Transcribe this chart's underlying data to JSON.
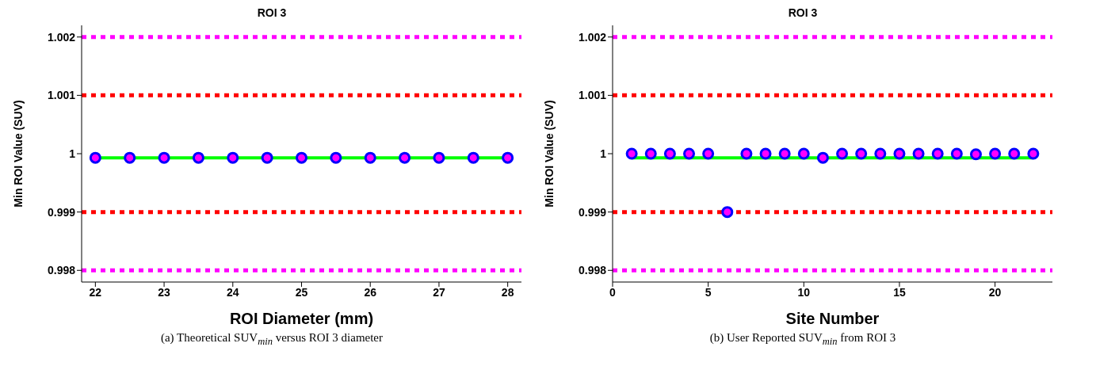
{
  "chart_data": [
    {
      "type": "scatter",
      "title": "ROI 3",
      "xlabel": "ROI Diameter (mm)",
      "ylabel": "Min ROI Value (SUV)",
      "xlim": [
        21.8,
        28.2
      ],
      "xticks": [
        22,
        23,
        24,
        25,
        26,
        27,
        28
      ],
      "ylim": [
        0.9978,
        1.0022
      ],
      "yticks": [
        0.998,
        0.999,
        1,
        1.001,
        1.002
      ],
      "series": [
        {
          "type": "line",
          "color": "#00ff00",
          "x": [
            22,
            28
          ],
          "values": [
            0.99993,
            0.99993
          ]
        },
        {
          "color": "#0000ff",
          "marker": "circle",
          "x": [
            22,
            22.5,
            23,
            23.5,
            24,
            24.5,
            25,
            25.5,
            26,
            26.5,
            27,
            27.5,
            28
          ],
          "values": [
            0.99993,
            0.99993,
            0.99993,
            0.99993,
            0.99993,
            0.99993,
            0.99993,
            0.99993,
            0.99993,
            0.99993,
            0.99993,
            0.99993,
            0.99993
          ]
        }
      ],
      "ref_lines": [
        {
          "axis": "y",
          "value": 1.002,
          "color": "#ff00ff",
          "line_style": "dotted"
        },
        {
          "axis": "y",
          "value": 1.001,
          "color": "#ff0000",
          "line_style": "dotted"
        },
        {
          "axis": "y",
          "value": 0.999,
          "color": "#ff0000",
          "line_style": "dotted"
        },
        {
          "axis": "y",
          "value": 0.998,
          "color": "#ff00ff",
          "line_style": "dotted"
        }
      ],
      "annotations": [
        "(a) Theoretical SUV$_{min}$ versus ROI 3 diameter"
      ]
    },
    {
      "type": "scatter",
      "title": "ROI 3",
      "xlabel": "Site Number",
      "ylabel": "Min ROI Value (SUV)",
      "xlim": [
        0,
        23
      ],
      "xticks": [
        0,
        5,
        10,
        15,
        20
      ],
      "ylim": [
        0.9978,
        1.0022
      ],
      "yticks": [
        0.998,
        0.999,
        1,
        1.001,
        1.002
      ],
      "series": [
        {
          "type": "line",
          "color": "#00ff00",
          "x": [
            1,
            22
          ],
          "values": [
            0.99993,
            0.99993
          ]
        },
        {
          "color": "#0000ff",
          "marker": "circle",
          "x": [
            1,
            2,
            3,
            4,
            5,
            6,
            7,
            8,
            9,
            10,
            11,
            12,
            13,
            14,
            15,
            16,
            17,
            18,
            19,
            20,
            21,
            22
          ],
          "values": [
            1,
            1,
            1,
            1,
            1,
            0.999,
            1,
            1,
            1,
            1,
            0.99993,
            1,
            1,
            1,
            1,
            1,
            1,
            1,
            0.99999,
            1,
            1,
            1
          ]
        }
      ],
      "ref_lines": [
        {
          "axis": "y",
          "value": 1.002,
          "color": "#ff00ff",
          "line_style": "dotted"
        },
        {
          "axis": "y",
          "value": 1.001,
          "color": "#ff0000",
          "line_style": "dotted"
        },
        {
          "axis": "y",
          "value": 0.999,
          "color": "#ff0000",
          "line_style": "dotted"
        },
        {
          "axis": "y",
          "value": 0.998,
          "color": "#ff00ff",
          "line_style": "dotted"
        }
      ],
      "annotations": [
        "(b) User Reported SUV$_{min}$ from ROI 3"
      ]
    }
  ]
}
